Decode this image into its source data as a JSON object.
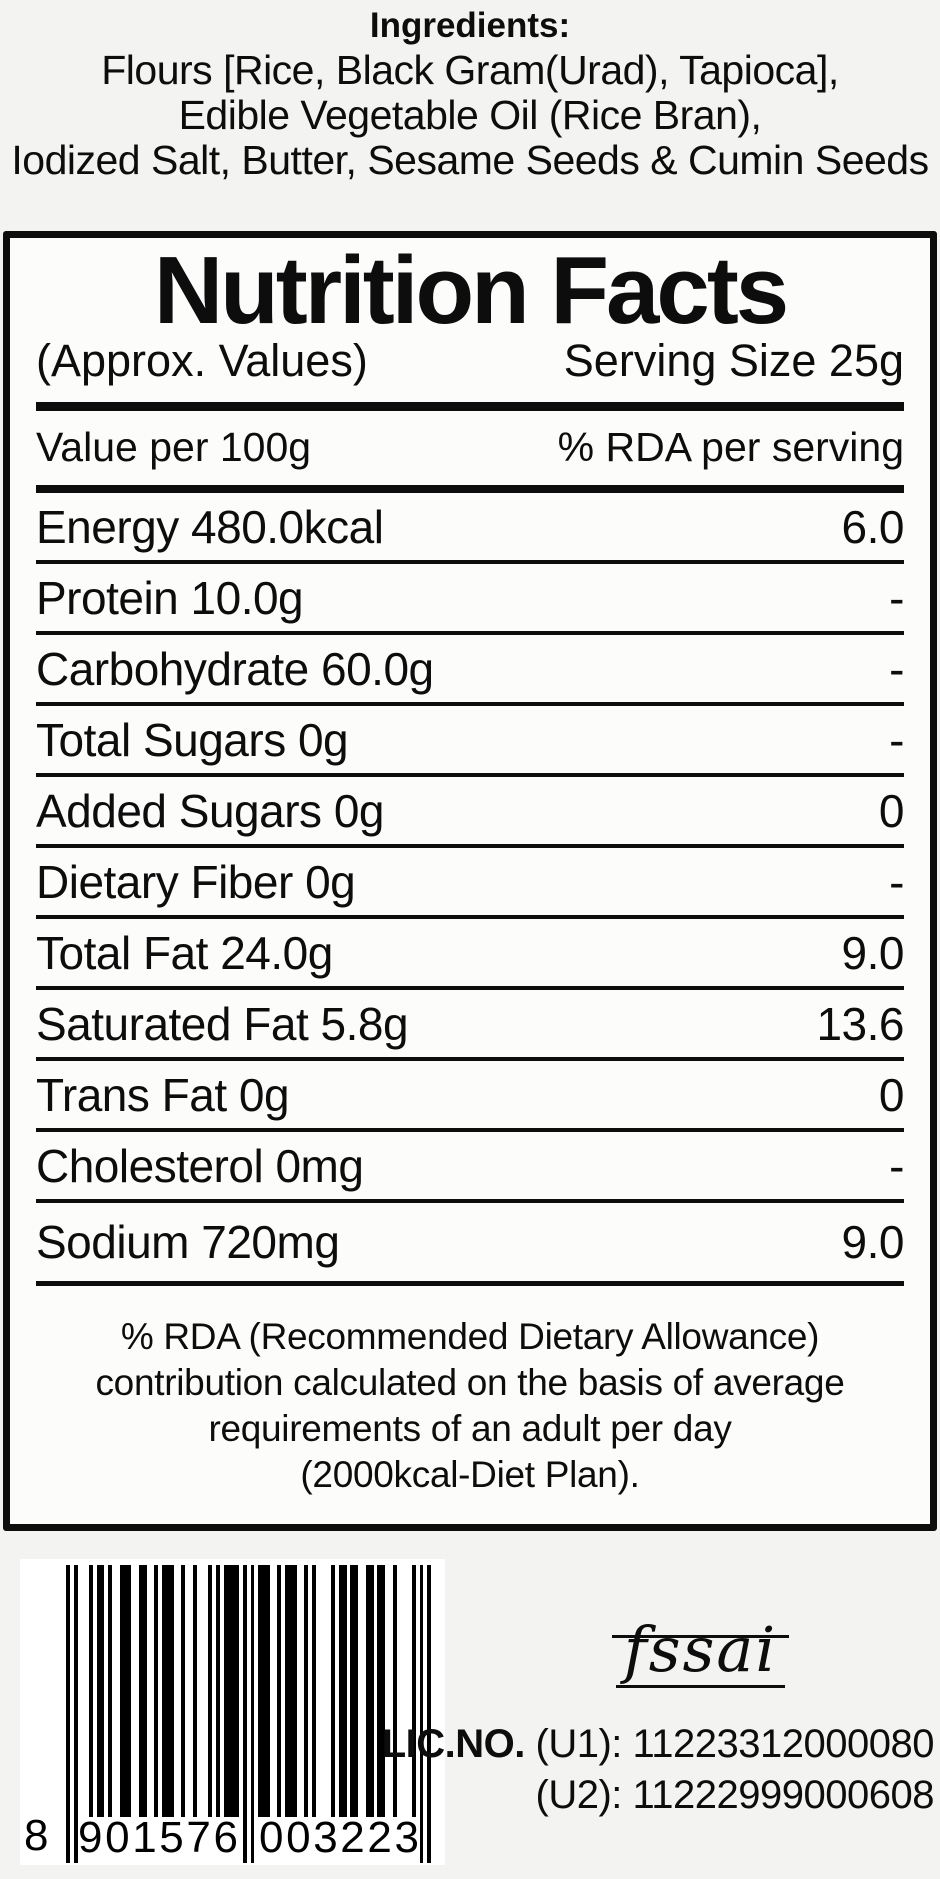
{
  "ingredients": {
    "title": "Ingredients:",
    "lines": [
      "Flours [Rice, Black Gram(Urad), Tapioca],",
      "Edible Vegetable Oil (Rice Bran),",
      "Iodized Salt, Butter, Sesame Seeds & Cumin Seeds"
    ]
  },
  "nutrition": {
    "title": "Nutrition Facts",
    "approx_label": "(Approx. Values)",
    "serving_size": "Serving Size 25g",
    "col_left": "Value per 100g",
    "col_right": "% RDA per serving",
    "rows": [
      {
        "label": "Energy 480.0kcal",
        "rda": "6.0"
      },
      {
        "label": "Protein 10.0g",
        "rda": "-"
      },
      {
        "label": "Carbohydrate 60.0g",
        "rda": "-"
      },
      {
        "label": "Total Sugars 0g",
        "rda": "-"
      },
      {
        "label": "Added Sugars 0g",
        "rda": "0"
      },
      {
        "label": "Dietary Fiber 0g",
        "rda": "-"
      },
      {
        "label": "Total Fat 24.0g",
        "rda": "9.0"
      },
      {
        "label": "Saturated Fat 5.8g",
        "rda": "13.6"
      },
      {
        "label": "Trans Fat 0g",
        "rda": "0"
      },
      {
        "label": "Cholesterol 0mg",
        "rda": "-"
      },
      {
        "label": "Sodium 720mg",
        "rda": "9.0"
      }
    ],
    "footnote_lines": [
      "% RDA (Recommended Dietary Allowance)",
      "contribution calculated on the basis of average",
      "requirements of an adult per day",
      "(2000kcal-Diet Plan)."
    ]
  },
  "barcode": {
    "value": "8901576003223",
    "first_digit": "8",
    "left_digits": "901576",
    "right_digits": "003223",
    "modules": "10100010110100111001100101110010010001010111101010111001011100101000010110110011011001000010101"
  },
  "certification": {
    "logo_text": "fssai",
    "lic_label": "LIC.NO.",
    "lic_line1": "(U1): 11223312000080",
    "lic_line2": "(U2): 11222999000608"
  },
  "colors": {
    "ink": "#0d0d0d",
    "page_bg": "#f3f3f1",
    "panel_bg": "#fcfcfb",
    "barcode_bg": "#ffffff",
    "bar_color": "#000000"
  }
}
